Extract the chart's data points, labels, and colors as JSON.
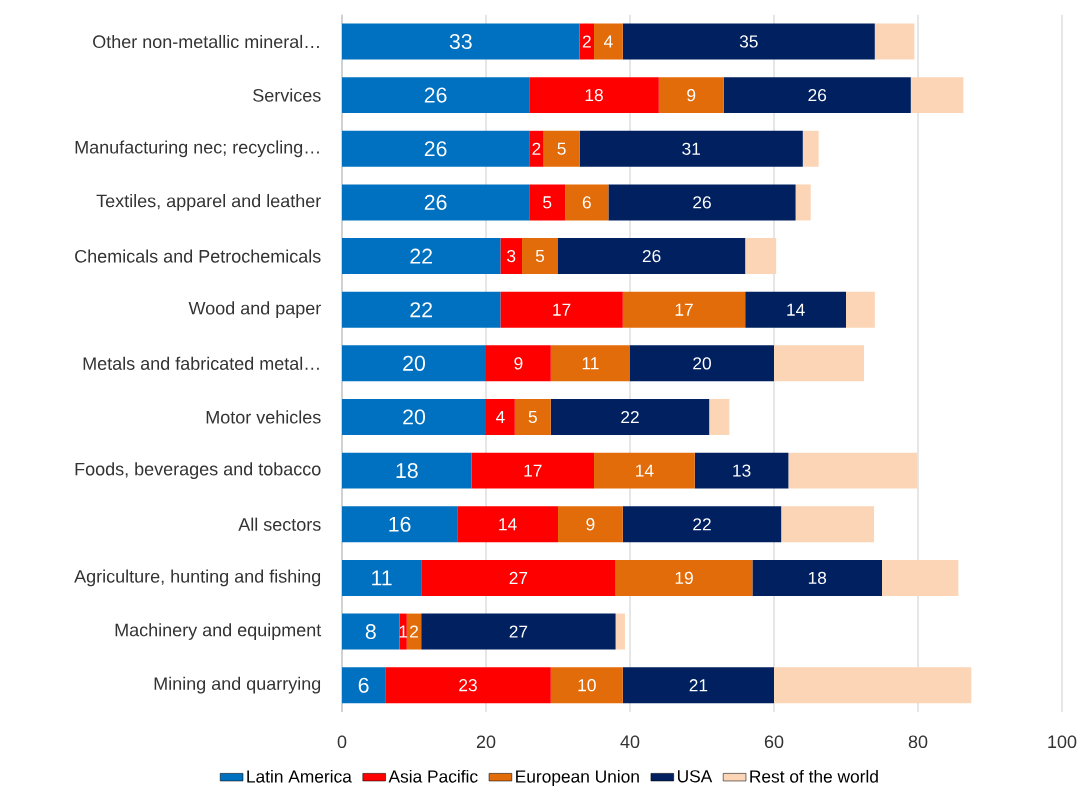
{
  "chart_data": {
    "type": "bar",
    "orientation": "horizontal",
    "stacked": true,
    "categories": [
      "Other non-metallic mineral…",
      "Services",
      "Manufacturing nec; recycling…",
      "Textiles, apparel and leather",
      "Chemicals and Petrochemicals",
      "Wood and paper",
      "Metals and fabricated metal…",
      "Motor vehicles",
      "Foods, beverages and tobacco",
      "All sectors",
      "Agriculture, hunting and fishing",
      "Machinery and equipment",
      "Mining and quarrying"
    ],
    "series": [
      {
        "name": "Latin America",
        "color": "#0070c0",
        "values": [
          33,
          26,
          26,
          26,
          22,
          22,
          20,
          20,
          18,
          16,
          11,
          8,
          6
        ],
        "value_labels": [
          "33",
          "26",
          "26",
          "26",
          "22",
          "22",
          "20",
          "20",
          "18",
          "16",
          "11",
          "8",
          "6"
        ]
      },
      {
        "name": "Asia Pacific",
        "color": "#ff0000",
        "values": [
          2,
          18,
          2,
          5,
          3,
          17,
          9,
          4,
          17,
          14,
          27,
          1,
          23
        ],
        "value_labels": [
          "2",
          "18",
          "2",
          "5",
          "3",
          "17",
          "9",
          "4",
          "17",
          "14",
          "27",
          "1",
          "23"
        ]
      },
      {
        "name": "European Union",
        "color": "#e36c0a",
        "values": [
          4,
          9,
          5,
          6,
          5,
          17,
          11,
          5,
          14,
          9,
          19,
          2,
          10
        ],
        "value_labels": [
          "4",
          "9",
          "5",
          "6",
          "5",
          "17",
          "11",
          "5",
          "14",
          "9",
          "19",
          "2",
          "10"
        ]
      },
      {
        "name": "USA",
        "color": "#002060",
        "values": [
          35,
          26,
          31,
          26,
          26,
          14,
          20,
          22,
          13,
          22,
          18,
          27,
          21
        ],
        "value_labels": [
          "35",
          "26",
          "31",
          "26",
          "26",
          "14",
          "20",
          "22",
          "13",
          "22",
          "18",
          "27",
          "21"
        ]
      },
      {
        "name": "Rest of the world",
        "color": "#fbd5b5",
        "values": [
          5.5,
          7.3,
          2.2,
          2.1,
          4.3,
          4.0,
          12.5,
          2.8,
          17.9,
          12.9,
          10.6,
          1.3,
          27.4
        ]
      }
    ],
    "xlim": [
      0,
      100
    ],
    "xticks": [
      0,
      20,
      40,
      60,
      80,
      100
    ],
    "grid": "x",
    "legend": "bottom"
  }
}
